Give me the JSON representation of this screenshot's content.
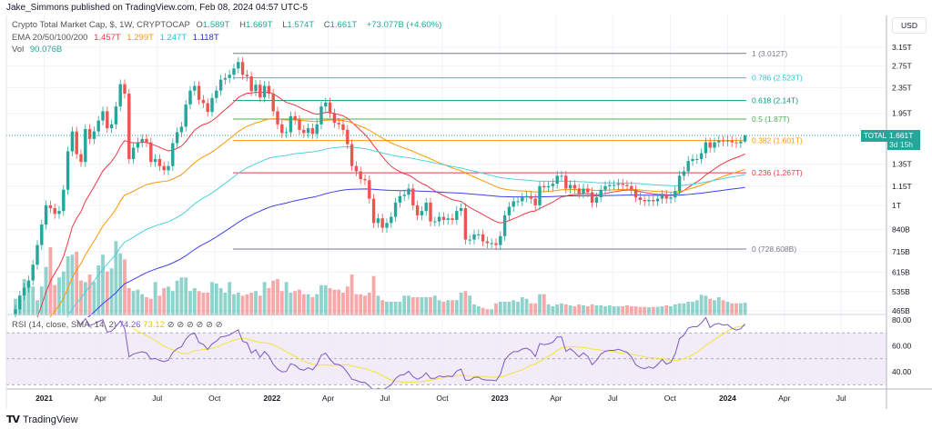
{
  "publisher_line": "Jake_Simmons published on TradingView.com, Feb 08, 2024 04:57 UTC-5",
  "legend": {
    "symbol": "Crypto Total Market Cap, $, 1W, CRYPTOCAP",
    "open_label": "O",
    "open": "1.589T",
    "high_label": "H",
    "high": "1.669T",
    "low_label": "L",
    "low": "1.574T",
    "close_label": "C",
    "close": "1.661T",
    "change": "+73.077B (+4.60%)",
    "ema_label": "EMA 20/50/100/200",
    "ema_values": [
      {
        "value": "1.457T",
        "color": "#f23645"
      },
      {
        "value": "1.299T",
        "color": "#ff9800"
      },
      {
        "value": "1.247T",
        "color": "#26c6da"
      },
      {
        "value": "1.118T",
        "color": "#2a2ae0"
      }
    ],
    "vol_label": "Vol",
    "vol_value": "90.076B"
  },
  "rsi_legend": {
    "label": "RSI (14, close, SMA, 14, 2)",
    "rsi_value": "74.26",
    "sma_value": "73.12",
    "hidden_icons": [
      "⊘",
      "⊘",
      "⊘",
      "⊘",
      "⊘",
      "⊘"
    ]
  },
  "price_axis": {
    "currency": "USD",
    "ticks": [
      {
        "label": "3.15T",
        "value": 3.15
      },
      {
        "label": "2.75T",
        "value": 2.75
      },
      {
        "label": "2.35T",
        "value": 2.35
      },
      {
        "label": "1.95T",
        "value": 1.95
      },
      {
        "label": "1.35T",
        "value": 1.35
      },
      {
        "label": "1.15T",
        "value": 1.15
      },
      {
        "label": "1T",
        "value": 1.0
      },
      {
        "label": "840B",
        "value": 0.84
      },
      {
        "label": "715B",
        "value": 0.715
      },
      {
        "label": "615B",
        "value": 0.615
      },
      {
        "label": "535B",
        "value": 0.535
      },
      {
        "label": "465B",
        "value": 0.465
      }
    ],
    "scale": "log",
    "current_tag": "TOTAL",
    "current_price": "1.661T",
    "current_value": 1.661,
    "countdown": "3d 15h"
  },
  "rsi_axis": {
    "ticks": [
      {
        "label": "80.00",
        "value": 80
      },
      {
        "label": "60.00",
        "value": 60
      },
      {
        "label": "40.00",
        "value": 40
      }
    ],
    "bands": [
      70,
      50,
      30
    ]
  },
  "time_axis": {
    "ticks": [
      {
        "label": "2021",
        "date": "2021-01-01"
      },
      {
        "label": "Apr",
        "date": "2021-04-01"
      },
      {
        "label": "Jul",
        "date": "2021-07-01"
      },
      {
        "label": "Oct",
        "date": "2021-10-01"
      },
      {
        "label": "2022",
        "date": "2022-01-01"
      },
      {
        "label": "Apr",
        "date": "2022-04-01"
      },
      {
        "label": "Jul",
        "date": "2022-07-01"
      },
      {
        "label": "Oct",
        "date": "2022-10-01"
      },
      {
        "label": "2023",
        "date": "2023-01-01"
      },
      {
        "label": "Apr",
        "date": "2023-04-01"
      },
      {
        "label": "Jul",
        "date": "2023-07-01"
      },
      {
        "label": "Oct",
        "date": "2023-10-01"
      },
      {
        "label": "2024",
        "date": "2024-01-01"
      },
      {
        "label": "Apr",
        "date": "2024-04-01"
      },
      {
        "label": "Jul",
        "date": "2024-07-01"
      }
    ]
  },
  "fib_levels": [
    {
      "label": "1 (3.012T)",
      "value": 3.012,
      "color": "#787b86"
    },
    {
      "label": "0.786 (2.523T)",
      "value": 2.523,
      "color": "#26c6da"
    },
    {
      "label": "0.618 (2.14T)",
      "value": 2.14,
      "color": "#089981"
    },
    {
      "label": "0.5 (1.87T)",
      "value": 1.87,
      "color": "#4caf50"
    },
    {
      "label": "0.382 (1.601T)",
      "value": 1.601,
      "color": "#ff9800"
    },
    {
      "label": "0.236 (1.267T)",
      "value": 1.267,
      "color": "#f23645"
    },
    {
      "label": "0 (728.608B)",
      "value": 0.728608,
      "color": "#787b86"
    }
  ],
  "colors": {
    "up": "#26a69a",
    "down": "#ef5350",
    "ema20": "#f23645",
    "ema50": "#ff9800",
    "ema100": "#4dd0e1",
    "ema200": "#3f3ff0",
    "rsi": "#7e57c2",
    "rsi_sma": "#f5e33b",
    "rsi_band": "#ede7f6"
  },
  "brand": "TradingView",
  "chart_data": {
    "type": "candlestick",
    "interval": "1W",
    "first_week": "2020-11-16",
    "y_unit": "T USD",
    "y_scale": "log",
    "ylim": [
      0.44,
      3.3
    ],
    "last_candle": {
      "open": 1.589,
      "high": 1.669,
      "low": 1.574,
      "close": 1.661
    },
    "close": [
      0.47,
      0.52,
      0.55,
      0.58,
      0.65,
      0.75,
      0.87,
      1.0,
      0.98,
      0.94,
      0.96,
      1.12,
      1.48,
      1.71,
      1.45,
      1.37,
      1.74,
      1.62,
      1.71,
      1.85,
      1.98,
      1.75,
      1.8,
      2.05,
      2.41,
      2.25,
      1.4,
      1.52,
      1.58,
      1.62,
      1.58,
      1.37,
      1.4,
      1.33,
      1.29,
      1.33,
      1.57,
      1.7,
      1.77,
      2.08,
      2.3,
      2.38,
      2.15,
      2.1,
      1.97,
      2.18,
      2.3,
      2.49,
      2.52,
      2.58,
      2.7,
      2.83,
      2.58,
      2.55,
      2.29,
      2.4,
      2.19,
      2.38,
      2.25,
      1.98,
      1.8,
      1.69,
      1.7,
      1.91,
      1.86,
      1.73,
      1.69,
      1.75,
      1.68,
      1.8,
      2.05,
      2.11,
      1.95,
      1.82,
      1.8,
      1.73,
      1.56,
      1.33,
      1.28,
      1.21,
      1.2,
      1.05,
      0.88,
      0.91,
      0.85,
      0.88,
      0.92,
      1.02,
      1.07,
      1.08,
      1.13,
      1.0,
      0.93,
      0.96,
      1.02,
      0.89,
      0.89,
      0.92,
      0.9,
      0.91,
      0.9,
      0.96,
      0.98,
      0.78,
      0.78,
      0.81,
      0.81,
      0.77,
      0.76,
      0.76,
      0.75,
      0.8,
      0.93,
      0.99,
      1.03,
      1.03,
      1.06,
      1.07,
      1.05,
      1.0,
      1.15,
      1.14,
      1.15,
      1.17,
      1.24,
      1.24,
      1.13,
      1.16,
      1.13,
      1.09,
      1.13,
      1.1,
      1.02,
      1.06,
      1.12,
      1.15,
      1.16,
      1.16,
      1.17,
      1.16,
      1.15,
      1.12,
      1.06,
      1.04,
      1.03,
      1.04,
      1.03,
      1.05,
      1.08,
      1.05,
      1.06,
      1.11,
      1.24,
      1.28,
      1.38,
      1.4,
      1.4,
      1.46,
      1.58,
      1.52,
      1.58,
      1.6,
      1.59,
      1.6,
      1.58,
      1.57,
      1.589,
      1.661
    ],
    "volume_b": [
      117,
      117,
      256,
      224,
      203,
      107,
      203,
      341,
      480,
      213,
      267,
      309,
      416,
      427,
      448,
      245,
      235,
      288,
      235,
      352,
      427,
      309,
      331,
      523,
      437,
      395,
      192,
      171,
      181,
      149,
      128,
      117,
      235,
      139,
      192,
      203,
      171,
      245,
      267,
      267,
      171,
      192,
      171,
      160,
      160,
      235,
      224,
      192,
      160,
      235,
      149,
      160,
      139,
      149,
      160,
      171,
      139,
      235,
      192,
      245,
      256,
      171,
      235,
      160,
      171,
      181,
      149,
      149,
      128,
      149,
      213,
      213,
      192,
      181,
      181,
      160,
      203,
      288,
      149,
      149,
      139,
      160,
      277,
      139,
      107,
      96,
      96,
      96,
      96,
      139,
      139,
      128,
      128,
      128,
      128,
      128,
      139,
      107,
      96,
      107,
      107,
      107,
      160,
      171,
      139,
      77,
      64,
      53,
      43,
      43,
      85,
      96,
      96,
      96,
      107,
      96,
      128,
      117,
      85,
      85,
      149,
      149,
      77,
      64,
      77,
      85,
      77,
      71,
      64,
      77,
      71,
      64,
      77,
      71,
      71,
      64,
      71,
      64,
      64,
      64,
      71,
      64,
      64,
      60,
      60,
      57,
      60,
      60,
      64,
      71,
      64,
      77,
      85,
      85,
      96,
      96,
      107,
      145,
      139,
      117,
      107,
      128,
      107,
      96,
      85,
      85,
      85,
      90.076
    ],
    "indicators": [
      "EMA 20",
      "EMA 50",
      "EMA 100",
      "EMA 200",
      "RSI 14",
      "RSI SMA 14"
    ]
  }
}
